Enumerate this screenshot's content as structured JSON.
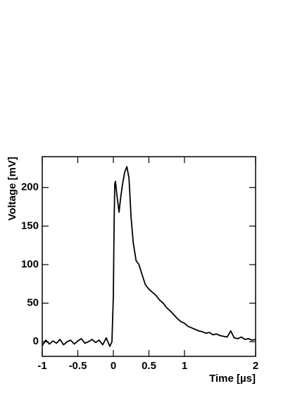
{
  "chart_data": {
    "type": "line",
    "x_label": "Time [µs]",
    "y_label": "Voltage [mV]",
    "color": "#000000",
    "x": [
      -1,
      -0.95,
      -0.9,
      -0.85,
      -0.8,
      -0.75,
      -0.7,
      -0.65,
      -0.6,
      -0.55,
      -0.5,
      -0.45,
      -0.4,
      -0.35,
      -0.3,
      -0.25,
      -0.2,
      -0.15,
      -0.1,
      -0.05,
      -0.02,
      0,
      0.01,
      0.02,
      0.03,
      0.05,
      0.08,
      0.1,
      0.13,
      0.16,
      0.19,
      0.22,
      0.25,
      0.28,
      0.32,
      0.36,
      0.4,
      0.45,
      0.5,
      0.55,
      0.6,
      0.65,
      0.7,
      0.75,
      0.8,
      0.85,
      0.9,
      0.95,
      1,
      1.05,
      1.1,
      1.15,
      1.2,
      1.25,
      1.3,
      1.35,
      1.4,
      1.45,
      1.5,
      1.55,
      1.6,
      1.65,
      1.7,
      1.75,
      1.8,
      1.85,
      1.9,
      1.95,
      2
    ],
    "values": [
      -5,
      2,
      -3,
      1,
      -2,
      3,
      -4,
      0,
      2,
      -3,
      1,
      4,
      -2,
      0,
      3,
      -1,
      2,
      -4,
      5,
      -6,
      0,
      60,
      150,
      205,
      208,
      190,
      168,
      185,
      205,
      220,
      227,
      212,
      160,
      128,
      105,
      100,
      88,
      74,
      68,
      64,
      60,
      54,
      50,
      44,
      40,
      35,
      30,
      26,
      24,
      20,
      18,
      16,
      14,
      13,
      11,
      12,
      9,
      10,
      8,
      7,
      6,
      14,
      5,
      4,
      6,
      3,
      4,
      2,
      3
    ],
    "xlim": [
      -1,
      2
    ],
    "ylim": [
      -19,
      240
    ],
    "xticks": [
      -1,
      -0.5,
      0,
      0.5,
      1,
      2
    ],
    "yticks": [
      0,
      50,
      100,
      150,
      200
    ]
  }
}
